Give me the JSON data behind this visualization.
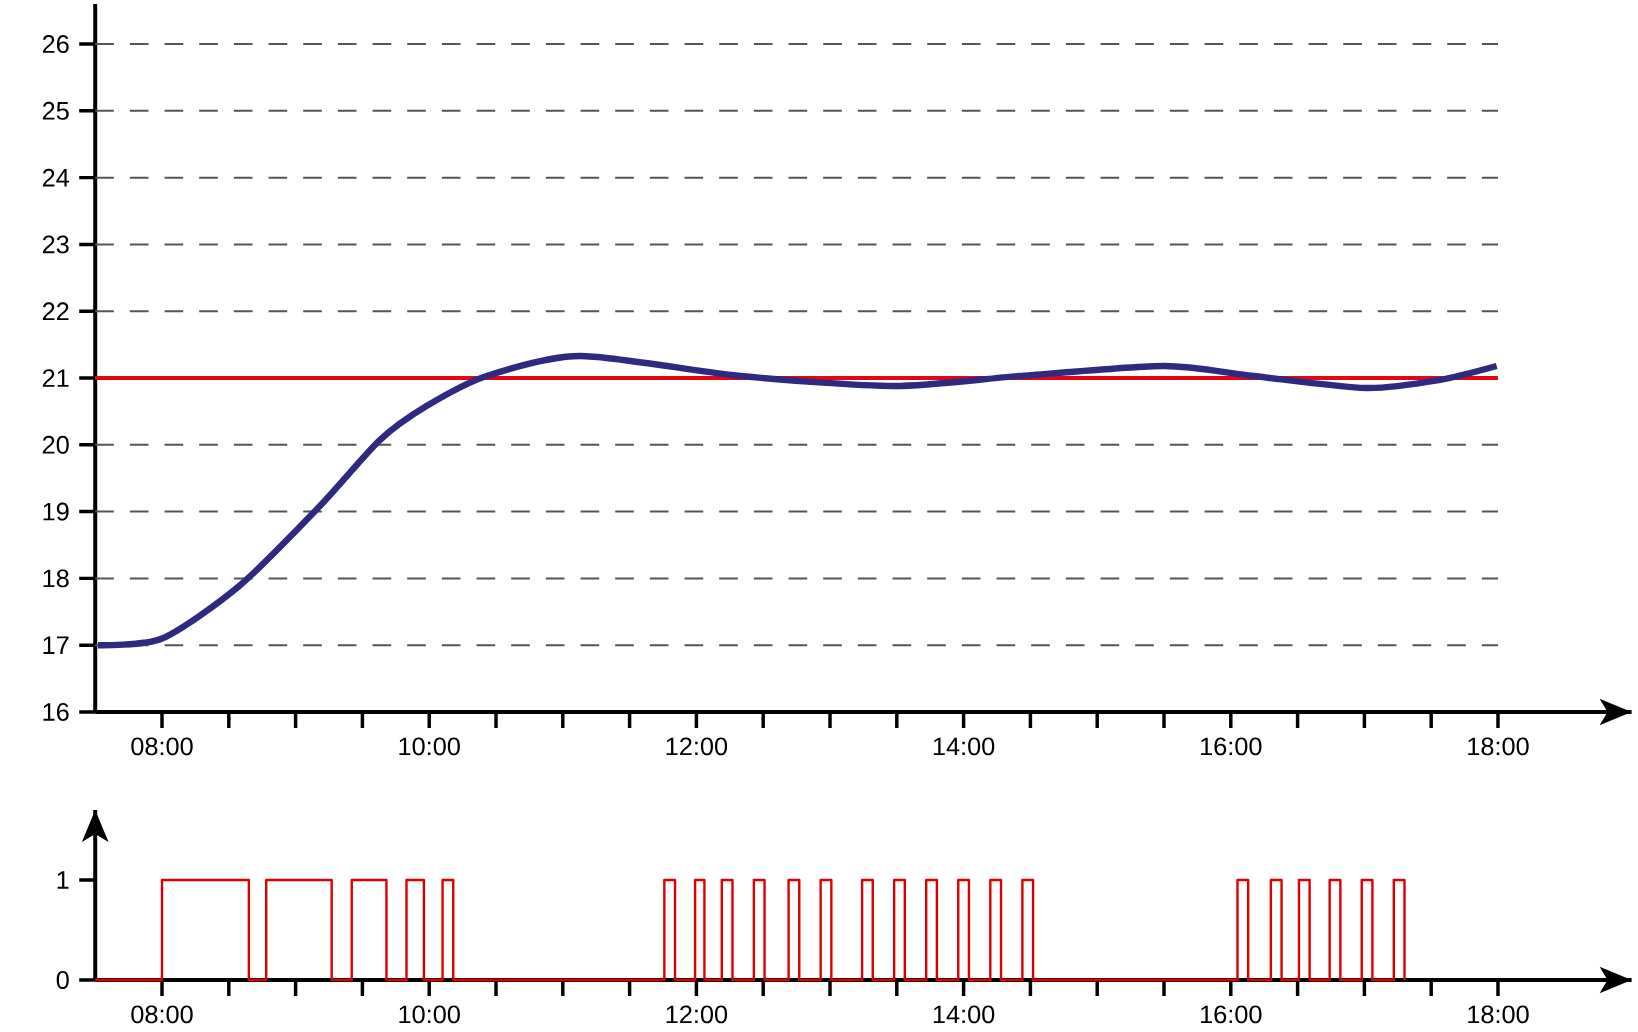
{
  "chart_data": [
    {
      "type": "line",
      "color": "#2e2a80",
      "x": [
        7.52,
        8.0,
        8.58,
        9.18,
        9.63,
        9.98,
        10.43,
        11.13,
        12.33,
        13.48,
        14.42,
        15.5,
        16.17,
        17.01,
        17.56,
        17.99
      ],
      "values": [
        17.0,
        17.1,
        17.89,
        19.08,
        20.07,
        20.58,
        21.03,
        21.33,
        21.03,
        20.88,
        21.03,
        21.18,
        21.03,
        20.85,
        20.97,
        21.18
      ],
      "xlim": [
        7.5,
        19
      ],
      "ylim": [
        16,
        26.6
      ],
      "xticks": [
        {
          "value": 8,
          "label": "08:00"
        },
        {
          "value": 8.5,
          "label": null
        },
        {
          "value": 9,
          "label": null
        },
        {
          "value": 9.5,
          "label": null
        },
        {
          "value": 10,
          "label": "10:00"
        },
        {
          "value": 10.5,
          "label": null
        },
        {
          "value": 11,
          "label": null
        },
        {
          "value": 11.5,
          "label": null
        },
        {
          "value": 12,
          "label": "12:00"
        },
        {
          "value": 12.5,
          "label": null
        },
        {
          "value": 13,
          "label": null
        },
        {
          "value": 13.5,
          "label": null
        },
        {
          "value": 14,
          "label": "14:00"
        },
        {
          "value": 14.5,
          "label": null
        },
        {
          "value": 15,
          "label": null
        },
        {
          "value": 15.5,
          "label": null
        },
        {
          "value": 16,
          "label": "16:00"
        },
        {
          "value": 16.5,
          "label": null
        },
        {
          "value": 17,
          "label": null
        },
        {
          "value": 17.5,
          "label": null
        },
        {
          "value": 18,
          "label": "18:00"
        }
      ],
      "yticks": [
        16,
        17,
        18,
        19,
        20,
        21,
        22,
        23,
        24,
        25,
        26
      ],
      "grid": "y",
      "ref_lines": [
        {
          "axis": "y",
          "value": 21,
          "color": "#e30613"
        }
      ]
    },
    {
      "type": "step",
      "color": "#dd0000",
      "x": [
        7.5,
        8.0,
        8.65,
        8.78,
        9.27,
        9.42,
        9.68,
        9.83,
        9.96,
        10.1,
        10.18,
        11.76,
        11.84,
        11.99,
        12.06,
        12.19,
        12.27,
        12.43,
        12.51,
        12.69,
        12.77,
        12.93,
        13.01,
        13.24,
        13.32,
        13.48,
        13.56,
        13.72,
        13.8,
        13.96,
        14.04,
        14.2,
        14.28,
        14.44,
        14.52,
        16.05,
        16.13,
        16.3,
        16.38,
        16.51,
        16.59,
        16.74,
        16.82,
        16.98,
        17.06,
        17.22,
        17.3
      ],
      "values": [
        0,
        1,
        0,
        1,
        0,
        1,
        0,
        1,
        0,
        1,
        0,
        1,
        0,
        1,
        0,
        1,
        0,
        1,
        0,
        1,
        0,
        1,
        0,
        1,
        0,
        1,
        0,
        1,
        0,
        1,
        0,
        1,
        0,
        1,
        0,
        1,
        0,
        1,
        0,
        1,
        0,
        1,
        0,
        1,
        0,
        1,
        0
      ],
      "xlim": [
        7.5,
        19
      ],
      "ylim": [
        0,
        1.7
      ],
      "xticks": [
        {
          "value": 8,
          "label": "08:00"
        },
        {
          "value": 8.5,
          "label": null
        },
        {
          "value": 9,
          "label": null
        },
        {
          "value": 9.5,
          "label": null
        },
        {
          "value": 10,
          "label": "10:00"
        },
        {
          "value": 10.5,
          "label": null
        },
        {
          "value": 11,
          "label": null
        },
        {
          "value": 11.5,
          "label": null
        },
        {
          "value": 12,
          "label": "12:00"
        },
        {
          "value": 12.5,
          "label": null
        },
        {
          "value": 13,
          "label": null
        },
        {
          "value": 13.5,
          "label": null
        },
        {
          "value": 14,
          "label": "14:00"
        },
        {
          "value": 14.5,
          "label": null
        },
        {
          "value": 15,
          "label": null
        },
        {
          "value": 15.5,
          "label": null
        },
        {
          "value": 16,
          "label": "16:00"
        },
        {
          "value": 16.5,
          "label": null
        },
        {
          "value": 17,
          "label": null
        },
        {
          "value": 17.5,
          "label": null
        },
        {
          "value": 18,
          "label": "18:00"
        }
      ],
      "yticks": [
        0,
        1
      ]
    }
  ]
}
